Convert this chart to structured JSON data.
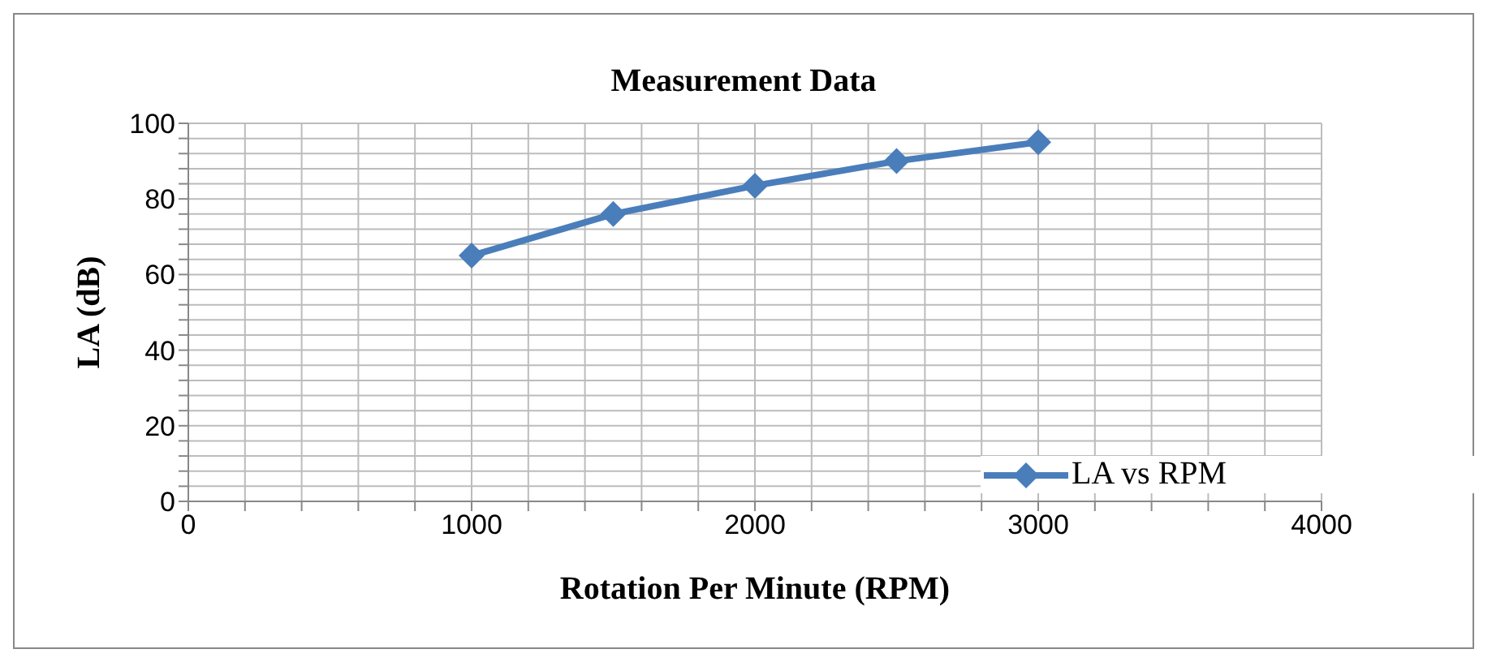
{
  "chart_data": {
    "type": "line",
    "title": "Measurement Data",
    "xlabel": "Rotation Per Minute (RPM)",
    "ylabel": "LA (dB)",
    "x": [
      1000,
      1500,
      2000,
      2500,
      3000
    ],
    "series": [
      {
        "name": "LA vs RPM",
        "color": "#4a7ebb",
        "values": [
          65,
          76,
          83.5,
          90,
          95
        ]
      }
    ],
    "xlim": [
      0,
      4000
    ],
    "xticks": [
      0,
      {
        "value": 200,
        "label": null
      },
      {
        "value": 400,
        "label": null
      },
      {
        "value": 600,
        "label": null
      },
      {
        "value": 800,
        "label": null
      },
      1000,
      {
        "value": 1200,
        "label": null
      },
      {
        "value": 1400,
        "label": null
      },
      {
        "value": 1600,
        "label": null
      },
      {
        "value": 1800,
        "label": null
      },
      2000,
      {
        "value": 2200,
        "label": null
      },
      {
        "value": 2400,
        "label": null
      },
      {
        "value": 2600,
        "label": null
      },
      {
        "value": 2800,
        "label": null
      },
      3000,
      {
        "value": 3200,
        "label": null
      },
      {
        "value": 3400,
        "label": null
      },
      {
        "value": 3600,
        "label": null
      },
      {
        "value": 3800,
        "label": null
      },
      4000
    ],
    "ylim": [
      0,
      100
    ],
    "yticks": [
      0,
      {
        "value": 4,
        "label": null
      },
      {
        "value": 8,
        "label": null
      },
      {
        "value": 12,
        "label": null
      },
      {
        "value": 16,
        "label": null
      },
      20,
      {
        "value": 24,
        "label": null
      },
      {
        "value": 28,
        "label": null
      },
      {
        "value": 32,
        "label": null
      },
      {
        "value": 36,
        "label": null
      },
      40,
      {
        "value": 44,
        "label": null
      },
      {
        "value": 48,
        "label": null
      },
      {
        "value": 52,
        "label": null
      },
      {
        "value": 56,
        "label": null
      },
      60,
      {
        "value": 64,
        "label": null
      },
      {
        "value": 68,
        "label": null
      },
      {
        "value": 72,
        "label": null
      },
      {
        "value": 76,
        "label": null
      },
      80,
      {
        "value": 84,
        "label": null
      },
      {
        "value": 88,
        "label": null
      },
      {
        "value": 92,
        "label": null
      },
      {
        "value": 96,
        "label": null
      },
      100
    ],
    "grid": true,
    "legend": "bottom right",
    "marker": "diamond",
    "line_style": "solid"
  }
}
